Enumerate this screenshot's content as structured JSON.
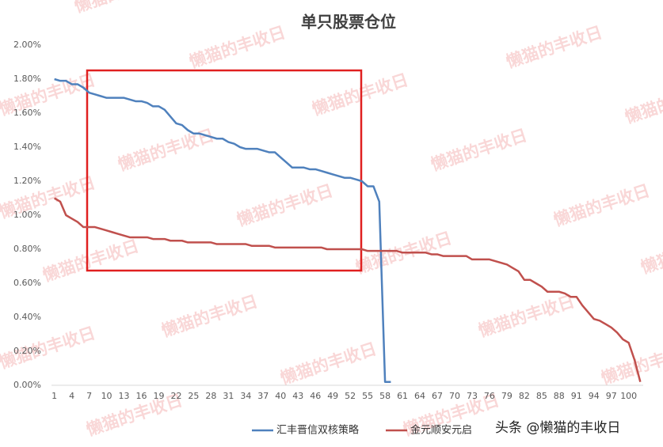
{
  "chart_data": {
    "type": "line",
    "title": "单只股票仓位",
    "watermark": "懒猫的丰收日",
    "source": "头条 @懒猫的丰收日",
    "categories": [
      1,
      null,
      null,
      4,
      null,
      null,
      7,
      null,
      null,
      10,
      null,
      null,
      13,
      null,
      null,
      16,
      null,
      null,
      19,
      null,
      null,
      22,
      null,
      null,
      25,
      null,
      null,
      28,
      null,
      null,
      31,
      null,
      null,
      34,
      null,
      null,
      37,
      null,
      null,
      40,
      null,
      null,
      43,
      null,
      null,
      46,
      null,
      null,
      49,
      null,
      null,
      52,
      null,
      null,
      55,
      null,
      null,
      58,
      null,
      null,
      61,
      null,
      null,
      64,
      null,
      null,
      67,
      null,
      null,
      70,
      null,
      null,
      73,
      null,
      null,
      76,
      null,
      null,
      79,
      null,
      null,
      82,
      null,
      null,
      85,
      null,
      null,
      88,
      null,
      null,
      91,
      null,
      null,
      94,
      null,
      null,
      97,
      null,
      null,
      100,
      null,
      null
    ],
    "series": [
      {
        "name": "汇丰晋信双核策略",
        "color": "#4f81bd",
        "values": [
          1.8,
          1.79,
          1.79,
          1.77,
          1.77,
          1.75,
          1.72,
          1.71,
          1.7,
          1.69,
          1.69,
          1.69,
          1.69,
          1.68,
          1.67,
          1.67,
          1.66,
          1.64,
          1.64,
          1.62,
          1.58,
          1.54,
          1.53,
          1.5,
          1.48,
          1.48,
          1.47,
          1.46,
          1.45,
          1.45,
          1.43,
          1.42,
          1.4,
          1.39,
          1.39,
          1.39,
          1.38,
          1.37,
          1.37,
          1.34,
          1.31,
          1.28,
          1.28,
          1.28,
          1.27,
          1.27,
          1.26,
          1.25,
          1.24,
          1.23,
          1.22,
          1.22,
          1.21,
          1.2,
          1.17,
          1.17,
          1.08,
          0.02,
          0.02,
          null,
          null,
          null,
          null,
          null,
          null,
          null,
          null,
          null,
          null,
          null,
          null,
          null,
          null,
          null,
          null,
          null,
          null,
          null,
          null,
          null,
          null,
          null,
          null,
          null,
          null,
          null,
          null,
          null,
          null,
          null,
          null,
          null,
          null,
          null,
          null,
          null,
          null,
          null,
          null,
          null,
          null,
          null
        ]
      },
      {
        "name": "金元顺安元启",
        "color": "#c0504d",
        "values": [
          1.1,
          1.08,
          1.0,
          0.98,
          0.96,
          0.93,
          0.93,
          0.93,
          0.92,
          0.91,
          0.9,
          0.89,
          0.88,
          0.87,
          0.87,
          0.87,
          0.87,
          0.86,
          0.86,
          0.86,
          0.85,
          0.85,
          0.85,
          0.84,
          0.84,
          0.84,
          0.84,
          0.84,
          0.83,
          0.83,
          0.83,
          0.83,
          0.83,
          0.83,
          0.82,
          0.82,
          0.82,
          0.82,
          0.81,
          0.81,
          0.81,
          0.81,
          0.81,
          0.81,
          0.81,
          0.81,
          0.81,
          0.8,
          0.8,
          0.8,
          0.8,
          0.8,
          0.8,
          0.8,
          0.79,
          0.79,
          0.79,
          0.79,
          0.79,
          0.79,
          0.78,
          0.78,
          0.78,
          0.78,
          0.78,
          0.77,
          0.77,
          0.76,
          0.76,
          0.76,
          0.76,
          0.76,
          0.74,
          0.74,
          0.74,
          0.74,
          0.73,
          0.72,
          0.71,
          0.69,
          0.67,
          0.62,
          0.62,
          0.6,
          0.58,
          0.55,
          0.55,
          0.55,
          0.54,
          0.52,
          0.52,
          0.47,
          0.43,
          0.39,
          0.38,
          0.36,
          0.34,
          0.31,
          0.27,
          0.25,
          0.15,
          0.02
        ]
      }
    ],
    "ylim": [
      0,
      2
    ],
    "yticks": [
      {
        "value": 0,
        "label": "0.00%"
      },
      {
        "value": 0.2,
        "label": "0.20%"
      },
      {
        "value": 0.4,
        "label": "0.40%"
      },
      {
        "value": 0.6,
        "label": "0.60%"
      },
      {
        "value": 0.8,
        "label": "0.80%"
      },
      {
        "value": 1,
        "label": "1.00%"
      },
      {
        "value": 1.2,
        "label": "1.20%"
      },
      {
        "value": 1.4,
        "label": "1.40%"
      },
      {
        "value": 1.6,
        "label": "1.60%"
      },
      {
        "value": 1.8,
        "label": "1.80%"
      },
      {
        "value": 2,
        "label": "2.00%"
      }
    ],
    "grid": false,
    "legend": "bottom"
  }
}
